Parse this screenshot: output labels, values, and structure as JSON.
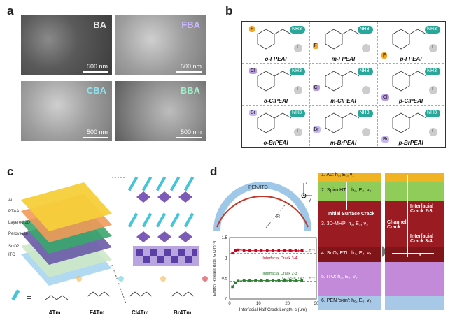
{
  "panel_labels": {
    "a": "a",
    "b": "b",
    "c": "c",
    "d": "d"
  },
  "panel_a": {
    "images": [
      {
        "tag": "BA",
        "tag_color": "#e8e8e8",
        "scale": "500 nm"
      },
      {
        "tag": "FBA",
        "tag_color": "#c9b8ff",
        "scale": "500 nm"
      },
      {
        "tag": "CBA",
        "tag_color": "#8fe3f0",
        "scale": "500 nm"
      },
      {
        "tag": "BBA",
        "tag_color": "#9ff0c8",
        "scale": "500 nm"
      }
    ]
  },
  "panel_b": {
    "molecules": [
      {
        "sub": "F",
        "name": "o-FPEAI",
        "sub_color": "#f5a623"
      },
      {
        "sub": "F",
        "name": "m-FPEAI",
        "sub_color": "#f5a623"
      },
      {
        "sub": "F",
        "name": "p-FPEAI",
        "sub_color": "#f5a623"
      },
      {
        "sub": "Cl",
        "name": "o-ClPEAI",
        "sub_color": "#b89ae0"
      },
      {
        "sub": "Cl",
        "name": "m-ClPEAI",
        "sub_color": "#b89ae0"
      },
      {
        "sub": "Cl",
        "name": "p-ClPEAI",
        "sub_color": "#b89ae0"
      },
      {
        "sub": "Br",
        "name": "o-BrPEAI",
        "sub_color": "#c7b9f0"
      },
      {
        "sub": "Br",
        "name": "m-BrPEAI",
        "sub_color": "#c7b9f0"
      },
      {
        "sub": "Br",
        "name": "p-BrPEAI",
        "sub_color": "#c7b9f0"
      }
    ],
    "amine": "NH3",
    "iodide": "I"
  },
  "panel_c": {
    "layers": [
      "Au",
      "PTAA",
      "Layered 2D",
      "Perovskite",
      "SnO2",
      "ITO"
    ],
    "molecules": [
      "4Tm",
      "F4Tm",
      "Cl4Tm",
      "Br4Tm"
    ],
    "equals": "="
  },
  "panel_d": {
    "pen_label": "PEN/ITO",
    "radius_label": "R",
    "axes": {
      "z": "z",
      "y": "y"
    },
    "crack_label": "Initial Surface Crack",
    "layers": [
      {
        "label": "1. Au: h₁, E₁, ν₁",
        "color": "#f0b323"
      },
      {
        "label": "2. Spiro HTL: h₂, E₂, ν₂",
        "color": "#8fcc5a"
      },
      {
        "label": "3. 3D-MHP: h₃, E₃, ν₃",
        "color": "#9a1c22"
      },
      {
        "label": "4. SnO₂ ETL: h₄, E₄, ν₄",
        "color": "#7f1419"
      },
      {
        "label": "5. ITO: h₅, E₅, ν₅",
        "color": "#c38ad9"
      },
      {
        "label": "6. PEN 'skin': h₆, E₆, ν₆",
        "color": "#a8c8e8"
      }
    ],
    "right_labels": {
      "crack23": "Interfacial Crack 2-3",
      "channel": "Channel Crack",
      "crack34": "Interfacial Crack 3-4",
      "a": "a"
    }
  },
  "chart_data": {
    "type": "scatter",
    "xlabel": "Interfacial Half Crack Length, c (μm)",
    "ylabel": "Energy Release Rate, G (J.m⁻²)",
    "xlim": [
      0,
      30
    ],
    "ylim": [
      0,
      1.5
    ],
    "xticks": [
      0,
      10,
      20,
      30
    ],
    "yticks": [
      0.0,
      0.5,
      1.0,
      1.5
    ],
    "series": [
      {
        "name": "Interfacial Crack 3-4",
        "color": "#d0021b",
        "x": [
          1,
          2,
          3,
          5,
          7,
          9,
          11,
          13,
          15,
          17,
          19,
          21,
          23,
          25
        ],
        "y": [
          1.12,
          1.18,
          1.2,
          1.19,
          1.18,
          1.18,
          1.18,
          1.18,
          1.18,
          1.18,
          1.18,
          1.18,
          1.18,
          1.18
        ],
        "steady_label": "G_SS = 1.11 J.m⁻²",
        "steady": 1.11
      },
      {
        "name": "Interfacial Crack 2-3",
        "color": "#2e7d32",
        "x": [
          1,
          2,
          3,
          5,
          7,
          9,
          11,
          13,
          15,
          17,
          19,
          21,
          23,
          25
        ],
        "y": [
          0.3,
          0.4,
          0.44,
          0.45,
          0.45,
          0.45,
          0.45,
          0.45,
          0.45,
          0.45,
          0.45,
          0.45,
          0.45,
          0.45
        ],
        "steady_label": "G_SS = 0.43 J.m⁻²",
        "steady": 0.43
      }
    ]
  }
}
